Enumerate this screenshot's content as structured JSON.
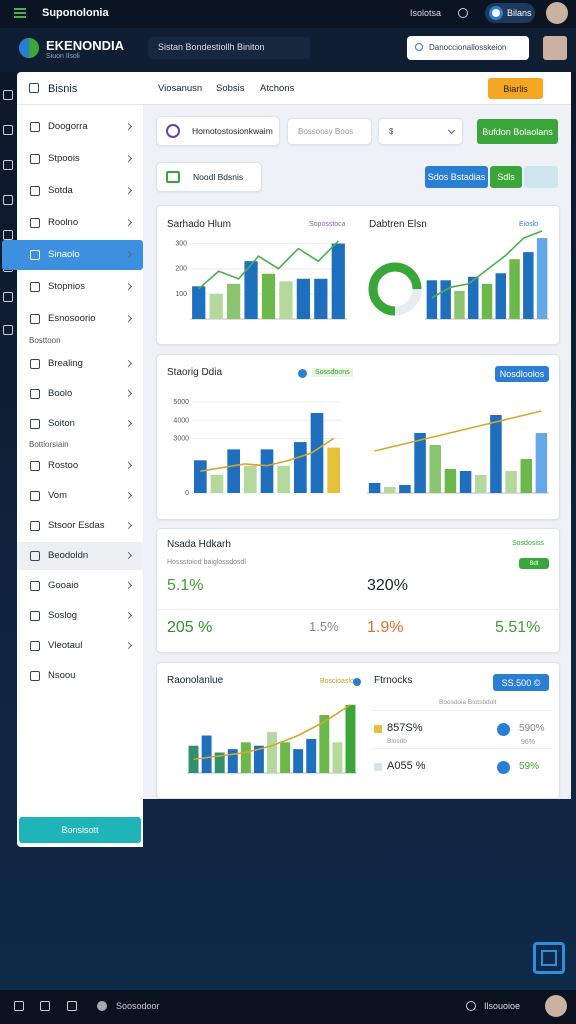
{
  "topbar": {
    "app": "Suponolonia",
    "status": "Isolotsa",
    "account": "Bilans"
  },
  "header": {
    "brand": "EKENONDIA",
    "tagline": "Siuon Ilsoli",
    "workspace": "Sistan Bondestiollh Biniton",
    "search": "Danoccionallosskeion"
  },
  "sidebar": {
    "title": "Bisnis",
    "groups": [
      {
        "items": [
          "Doogorra",
          "Stpoois",
          "Sotda",
          "Roolno",
          "Sinaolo",
          "Stopnios",
          "Esnosoorio"
        ]
      },
      {
        "heading": "Bosttoon",
        "items": [
          "Brealing",
          "Boolo",
          "Soiton"
        ]
      },
      {
        "heading": "Bottiorsiain",
        "items": [
          "Rostoo",
          "Vom",
          "Stsoor Esdas",
          "Beodoldn",
          "Gooaio",
          "Soslog",
          "Vleotaul",
          "Nsoou"
        ]
      }
    ],
    "button": "Bonsisott"
  },
  "tabs": {
    "items": [
      "Viosanusn",
      "Sobsis",
      "Atchons"
    ],
    "button": "Biarlis"
  },
  "controls": {
    "card": "Homotostosionkwaim",
    "input": "Bossoosy Boos",
    "select": "$",
    "button": "Bufdon Bolaolans"
  },
  "row2": {
    "card": "Noodl Bdsnis",
    "buttons": [
      "Sdos Bstadias",
      "Sdls"
    ]
  },
  "card1": {
    "left_title": "Sarhado Hlum",
    "left_tag": "Soposstoca",
    "right_title": "Dabtren Elsn",
    "right_tag": "Eioslo",
    "left_chart": {
      "ylim": [
        0,
        350
      ],
      "yticks": [
        100,
        200,
        300
      ],
      "values": [
        130,
        100,
        140,
        230,
        180,
        150,
        160,
        160,
        300
      ],
      "colors": [
        "#1f6fbf",
        "#b5d99c",
        "#8cc56f",
        "#1f6fbf",
        "#6cb84a",
        "#b5d99c",
        "#1f6fbf",
        "#1f6fbf",
        "#1f6fbf"
      ],
      "trend": [
        120,
        190,
        160,
        250,
        200,
        280,
        230,
        310
      ],
      "trend_color": "#4caf50"
    },
    "donut": {
      "value": 75,
      "max": 100,
      "color": "#3aa639"
    },
    "right_chart": {
      "ylim": [
        0,
        250
      ],
      "values": [
        110,
        110,
        80,
        120,
        100,
        130,
        170,
        190,
        230
      ],
      "colors": [
        "#1f6fbf",
        "#1f6fbf",
        "#8cc56f",
        "#1f6fbf",
        "#6cb84a",
        "#1f6fbf",
        "#6cb84a",
        "#1f6fbf",
        "#64a8e8"
      ],
      "trend": [
        60,
        90,
        100,
        140,
        180,
        230,
        250
      ],
      "trend_color": "#4caf50"
    }
  },
  "card2": {
    "title": "Staorig Ddia",
    "legend": "Sossdoons",
    "button": "Nosdloolos",
    "left_chart": {
      "ylim": [
        0,
        5500
      ],
      "yticks": [
        0,
        3000,
        4000,
        5000
      ],
      "values": [
        1800,
        1000,
        2400,
        1500,
        2400,
        1500,
        2800,
        4400,
        2500
      ],
      "colors": [
        "#1f6fbf",
        "#b5d99c",
        "#1f6fbf",
        "#b5d99c",
        "#1f6fbf",
        "#b5d99c",
        "#1f6fbf",
        "#1f6fbf",
        "#e8c13a"
      ],
      "trend": [
        1200,
        1400,
        1600,
        1500,
        1800,
        2200,
        3000
      ],
      "trend_color": "#d4a72c"
    },
    "right_chart": {
      "ylim": [
        0,
        5000
      ],
      "values": [
        500,
        300,
        400,
        3000,
        2400,
        1200,
        1100,
        900,
        3900,
        1100,
        1700,
        3000
      ],
      "colors": [
        "#1f6fbf",
        "#b5d99c",
        "#1f6fbf",
        "#1f6fbf",
        "#8cc56f",
        "#6cb84a",
        "#1f6fbf",
        "#b5d99c",
        "#1f6fbf",
        "#b5d99c",
        "#6cb84a",
        "#64a8e8"
      ],
      "trend": [
        2100,
        2500,
        2900,
        3300,
        3700,
        4100
      ],
      "trend_color": "#d4a72c"
    }
  },
  "card3": {
    "title": "Nsada Hdkarh",
    "subtitle": "Hossstoiod baiglossdosdl",
    "tag": "Sosdosiss",
    "pill": "Bdt",
    "metrics": [
      "5.1%",
      "320%",
      "205 %",
      "1.5%",
      "1.9%",
      "5.51%"
    ],
    "metric_colors": [
      "#3f9f2f",
      "#1b2430",
      "#2f8f2f",
      "#888888",
      "#d9722c",
      "#3f9f2f"
    ]
  },
  "card4": {
    "title": "Raonolanlue",
    "legend": "Boscioaslo",
    "right_title": "Ftrnocks",
    "button": "SS.500 ©",
    "header_note": "Boosdoia Blotsbdolt",
    "chart": {
      "ylim": [
        0,
        110
      ],
      "values": [
        40,
        55,
        30,
        35,
        45,
        40,
        60,
        45,
        35,
        50,
        85,
        45,
        100
      ],
      "colors": [
        "#2f8f6f",
        "#1f6fbf",
        "#2f8f6f",
        "#1f6fbf",
        "#6cb84a",
        "#1f6fbf",
        "#b5d99c",
        "#6cb84a",
        "#1f6fbf",
        "#1f6fbf",
        "#6cb84a",
        "#b5d99c",
        "#3aa639"
      ],
      "trend": [
        20,
        25,
        30,
        40,
        55,
        75,
        100
      ],
      "trend_color": "#d4a72c"
    },
    "list": [
      {
        "value": "857S%",
        "sub": "Blosdb",
        "right": "590%",
        "right_sub": "96%"
      },
      {
        "value": "A055 %",
        "right": "59%"
      }
    ]
  },
  "footer": {
    "left": "Soosodoor",
    "right": "Ilsouoioe"
  }
}
